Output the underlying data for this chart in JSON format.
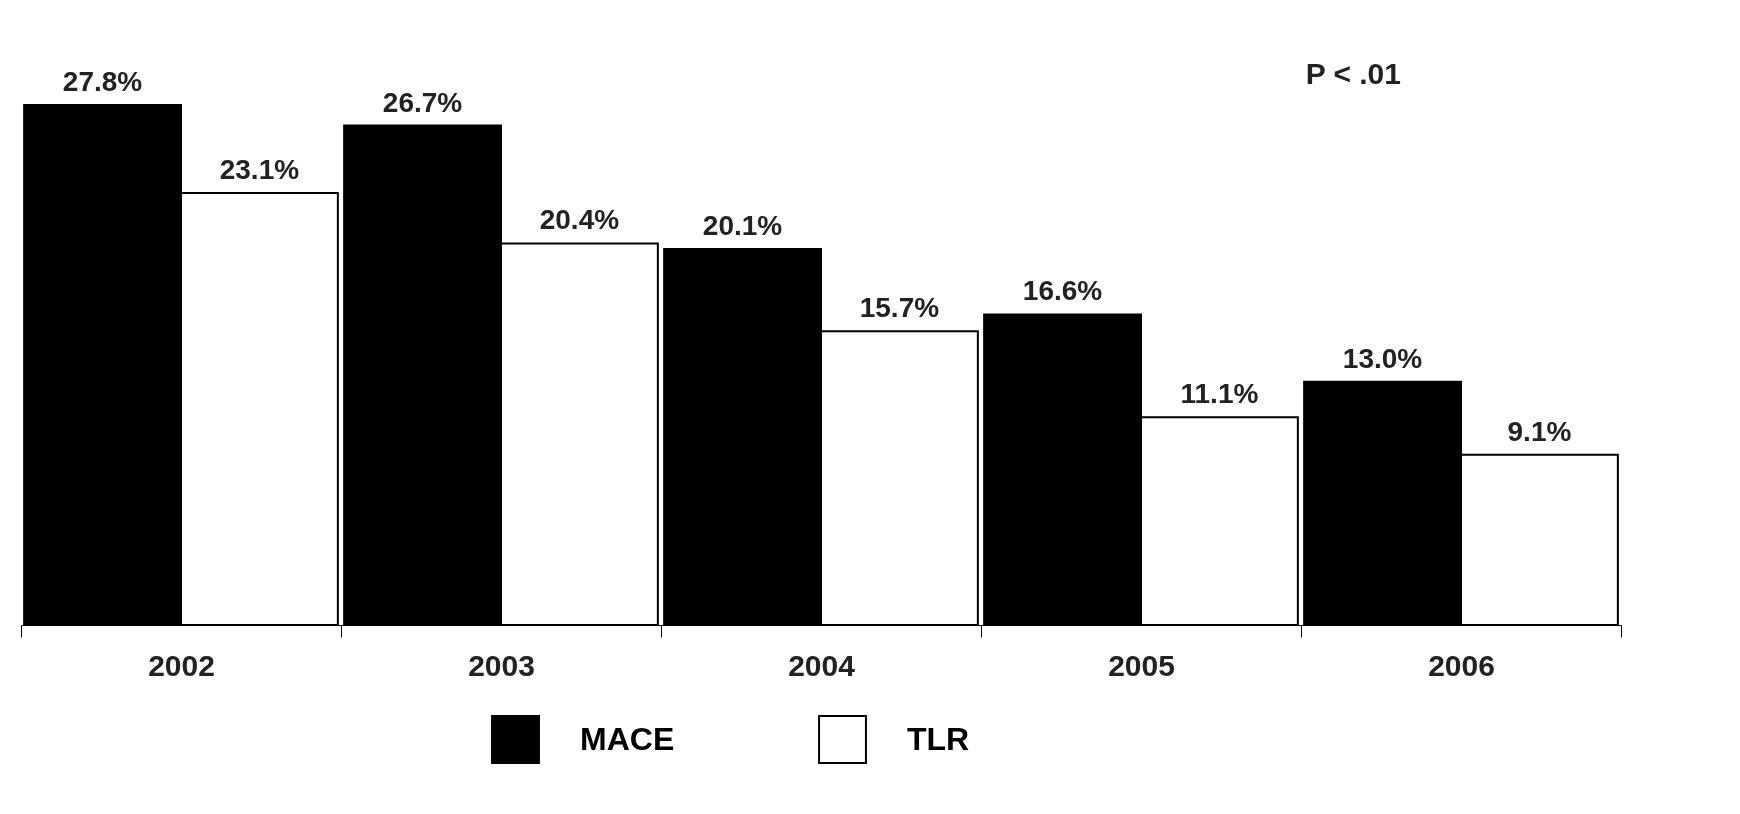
{
  "chart_data": {
    "type": "bar",
    "categories": [
      "2002",
      "2003",
      "2004",
      "2005",
      "2006"
    ],
    "series": [
      {
        "name": "MACE",
        "color": "#000000",
        "values": [
          27.8,
          26.7,
          20.1,
          16.6,
          13.0
        ],
        "value_labels": [
          "27.8%",
          "26.7%",
          "20.1%",
          "16.6%",
          "13.0%"
        ]
      },
      {
        "name": "TLR",
        "color": "#ffffff",
        "values": [
          23.1,
          20.4,
          15.7,
          11.1,
          9.1
        ],
        "value_labels": [
          "23.1%",
          "20.4%",
          "15.7%",
          "11.1%",
          "9.1%"
        ]
      }
    ],
    "grid": false,
    "legend": "bottom",
    "tick_labels": "x",
    "annotations": [
      "P < .01"
    ]
  }
}
